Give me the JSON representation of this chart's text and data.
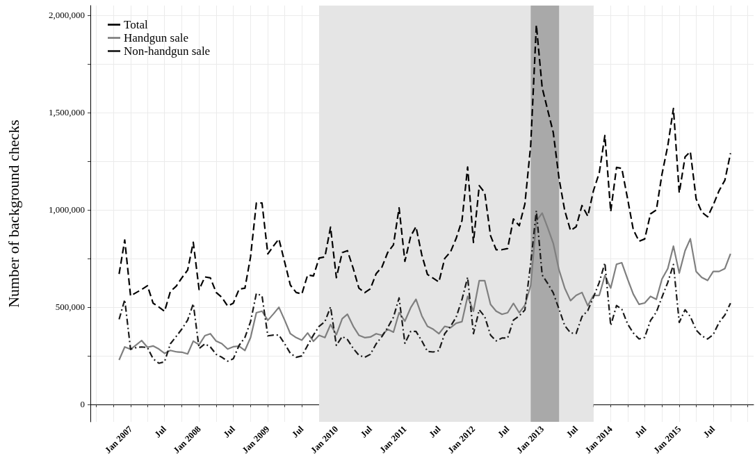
{
  "chart_data": {
    "type": "line",
    "ylabel": "Number of background checks",
    "x": [
      "2006-11",
      "2006-12",
      "2007-01",
      "2007-02",
      "2007-03",
      "2007-04",
      "2007-05",
      "2007-06",
      "2007-07",
      "2007-08",
      "2007-09",
      "2007-10",
      "2007-11",
      "2007-12",
      "2008-01",
      "2008-02",
      "2008-03",
      "2008-04",
      "2008-05",
      "2008-06",
      "2008-07",
      "2008-08",
      "2008-09",
      "2008-10",
      "2008-11",
      "2008-12",
      "2009-01",
      "2009-02",
      "2009-03",
      "2009-04",
      "2009-05",
      "2009-06",
      "2009-07",
      "2009-08",
      "2009-09",
      "2009-10",
      "2009-11",
      "2009-12",
      "2010-01",
      "2010-02",
      "2010-03",
      "2010-04",
      "2010-05",
      "2010-06",
      "2010-07",
      "2010-08",
      "2010-09",
      "2010-10",
      "2010-11",
      "2010-12",
      "2011-01",
      "2011-02",
      "2011-03",
      "2011-04",
      "2011-05",
      "2011-06",
      "2011-07",
      "2011-08",
      "2011-09",
      "2011-10",
      "2011-11",
      "2011-12",
      "2012-01",
      "2012-02",
      "2012-03",
      "2012-04",
      "2012-05",
      "2012-06",
      "2012-07",
      "2012-08",
      "2012-09",
      "2012-10",
      "2012-11",
      "2012-12",
      "2013-01",
      "2013-02",
      "2013-03",
      "2013-04",
      "2013-05",
      "2013-06",
      "2013-07",
      "2013-08",
      "2013-09",
      "2013-10",
      "2013-11",
      "2013-12",
      "2014-01",
      "2014-02",
      "2014-03",
      "2014-04",
      "2014-05",
      "2014-06",
      "2014-07",
      "2014-08",
      "2014-09",
      "2014-10",
      "2014-11",
      "2014-12",
      "2015-01",
      "2015-02",
      "2015-03",
      "2015-04",
      "2015-05",
      "2015-06",
      "2015-07",
      "2015-08",
      "2015-09",
      "2015-10"
    ],
    "series": [
      {
        "name": "Total",
        "color": "#000000",
        "line_style": "dashed",
        "values": [
          670000,
          845000,
          557000,
          575000,
          590000,
          610000,
          520000,
          500000,
          478000,
          580000,
          607000,
          650000,
          690000,
          833000,
          590000,
          655000,
          650000,
          575000,
          550000,
          505000,
          520000,
          592000,
          597000,
          758000,
          1035000,
          1035000,
          773000,
          815000,
          850000,
          730000,
          613000,
          575000,
          567000,
          665000,
          660000,
          752000,
          758000,
          911000,
          651000,
          780000,
          790000,
          698000,
          597000,
          574000,
          594000,
          672000,
          706000,
          780000,
          820000,
          1010000,
          735000,
          865000,
          913000,
          768000,
          668000,
          648000,
          629000,
          750000,
          784000,
          853000,
          945000,
          1220000,
          832000,
          1124000,
          1088000,
          867000,
          795000,
          795000,
          801000,
          953000,
          918000,
          1030000,
          1333000,
          1950000,
          1628000,
          1506000,
          1398000,
          1160000,
          997000,
          893000,
          913000,
          1022000,
          967000,
          1098000,
          1190000,
          1382000,
          991000,
          1218000,
          1213000,
          1056000,
          899000,
          838000,
          850000,
          979000,
          999000,
          1183000,
          1329000,
          1521000,
          1087000,
          1272000,
          1299000,
          1056000,
          988000,
          964000,
          1025000,
          1098000,
          1152000,
          1291000
        ]
      },
      {
        "name": "Handgun sale",
        "color": "#7f7f7f",
        "line_style": "solid",
        "values": [
          228000,
          295000,
          283000,
          306000,
          328000,
          293000,
          300000,
          284000,
          262000,
          277000,
          270000,
          268000,
          259000,
          325000,
          306000,
          353000,
          363000,
          325000,
          312000,
          284000,
          296000,
          299000,
          277000,
          343000,
          471000,
          479000,
          432000,
          466000,
          499000,
          432000,
          363000,
          343000,
          330000,
          367000,
          324000,
          355000,
          343000,
          410000,
          358000,
          440000,
          463000,
          401000,
          355000,
          343000,
          346000,
          363000,
          355000,
          386000,
          371000,
          471000,
          428000,
          497000,
          540000,
          455000,
          401000,
          386000,
          363000,
          401000,
          394000,
          417000,
          425000,
          555000,
          479000,
          636000,
          636000,
          514000,
          479000,
          463000,
          471000,
          519000,
          471000,
          510000,
          611000,
          943000,
          983000,
          904000,
          828000,
          690000,
          598000,
          533000,
          560000,
          575000,
          507000,
          560000,
          560000,
          662000,
          598000,
          720000,
          728000,
          644000,
          567000,
          514000,
          521000,
          555000,
          540000,
          644000,
          698000,
          813000,
          675000,
          790000,
          851000,
          683000,
          652000,
          637000,
          683000,
          683000,
          698000,
          774000
        ]
      },
      {
        "name": "Non-handgun sale",
        "color": "#1a1a1a",
        "line_style": "dashdot",
        "values": [
          437000,
          538000,
          283000,
          292000,
          295000,
          292000,
          234000,
          211000,
          219000,
          311000,
          349000,
          387000,
          433000,
          517000,
          287000,
          311000,
          295000,
          257000,
          242000,
          222000,
          234000,
          303000,
          344000,
          425000,
          570000,
          558000,
          352000,
          356000,
          356000,
          311000,
          262000,
          242000,
          249000,
          303000,
          356000,
          401000,
          425000,
          501000,
          303000,
          349000,
          333000,
          287000,
          252000,
          242000,
          257000,
          311000,
          349000,
          394000,
          448000,
          547000,
          314000,
          375000,
          375000,
          326000,
          272000,
          269000,
          276000,
          363000,
          401000,
          448000,
          539000,
          653000,
          363000,
          486000,
          451000,
          356000,
          326000,
          341000,
          341000,
          433000,
          455000,
          485000,
          726000,
          995000,
          665000,
          619000,
          573000,
          489000,
          405000,
          367000,
          364000,
          451000,
          482000,
          551000,
          627000,
          727000,
          405000,
          508000,
          489000,
          413000,
          367000,
          336000,
          344000,
          431000,
          474000,
          551000,
          627000,
          719000,
          421000,
          486000,
          451000,
          382000,
          352000,
          336000,
          359000,
          421000,
          459000,
          520000
        ]
      }
    ],
    "bands": [
      {
        "axis": "x",
        "from": "2009-10",
        "to": "2013-10",
        "color": "#e5e5e5"
      },
      {
        "axis": "x",
        "from": "2012-11",
        "to": "2013-04",
        "color": "#a9a9a9"
      }
    ],
    "xlim": [
      "2006-06",
      "2016-02"
    ],
    "xticks": [
      {
        "value": "2006-07",
        "label": null
      },
      {
        "value": "2006-10",
        "label": null
      },
      {
        "value": "2007-01",
        "label": "Jan 2007"
      },
      {
        "value": "2007-04",
        "label": null
      },
      {
        "value": "2007-07",
        "label": "Jul"
      },
      {
        "value": "2007-10",
        "label": null
      },
      {
        "value": "2008-01",
        "label": "Jan 2008"
      },
      {
        "value": "2008-04",
        "label": null
      },
      {
        "value": "2008-07",
        "label": "Jul"
      },
      {
        "value": "2008-10",
        "label": null
      },
      {
        "value": "2009-01",
        "label": "Jan 2009"
      },
      {
        "value": "2009-04",
        "label": null
      },
      {
        "value": "2009-07",
        "label": "Jul"
      },
      {
        "value": "2009-10",
        "label": null
      },
      {
        "value": "2010-01",
        "label": "Jan 2010"
      },
      {
        "value": "2010-04",
        "label": null
      },
      {
        "value": "2010-07",
        "label": "Jul"
      },
      {
        "value": "2010-10",
        "label": null
      },
      {
        "value": "2011-01",
        "label": "Jan 2011"
      },
      {
        "value": "2011-04",
        "label": null
      },
      {
        "value": "2011-07",
        "label": "Jul"
      },
      {
        "value": "2011-10",
        "label": null
      },
      {
        "value": "2012-01",
        "label": "Jan 2012"
      },
      {
        "value": "2012-04",
        "label": null
      },
      {
        "value": "2012-07",
        "label": "Jul"
      },
      {
        "value": "2012-10",
        "label": null
      },
      {
        "value": "2013-01",
        "label": "Jan 2013"
      },
      {
        "value": "2013-04",
        "label": null
      },
      {
        "value": "2013-07",
        "label": "Jul"
      },
      {
        "value": "2013-10",
        "label": null
      },
      {
        "value": "2014-01",
        "label": "Jan 2014"
      },
      {
        "value": "2014-04",
        "label": null
      },
      {
        "value": "2014-07",
        "label": "Jul"
      },
      {
        "value": "2014-10",
        "label": null
      },
      {
        "value": "2015-01",
        "label": "Jan 2015"
      },
      {
        "value": "2015-04",
        "label": null
      },
      {
        "value": "2015-07",
        "label": "Jul"
      },
      {
        "value": "2015-10",
        "label": null
      },
      {
        "value": "2016-01",
        "label": null
      }
    ],
    "ylim": [
      -90000,
      2050000
    ],
    "yticks": [
      {
        "value": 0,
        "label": "0"
      },
      {
        "value": 250000,
        "label": null
      },
      {
        "value": 500000,
        "label": "500,000"
      },
      {
        "value": 750000,
        "label": null
      },
      {
        "value": 1000000,
        "label": "1,000,000"
      },
      {
        "value": 1250000,
        "label": null
      },
      {
        "value": 1500000,
        "label": "1,500,000"
      },
      {
        "value": 1750000,
        "label": null
      },
      {
        "value": 2000000,
        "label": "2,000,000"
      }
    ],
    "grid": true,
    "legend": "top left",
    "marker": "none"
  }
}
